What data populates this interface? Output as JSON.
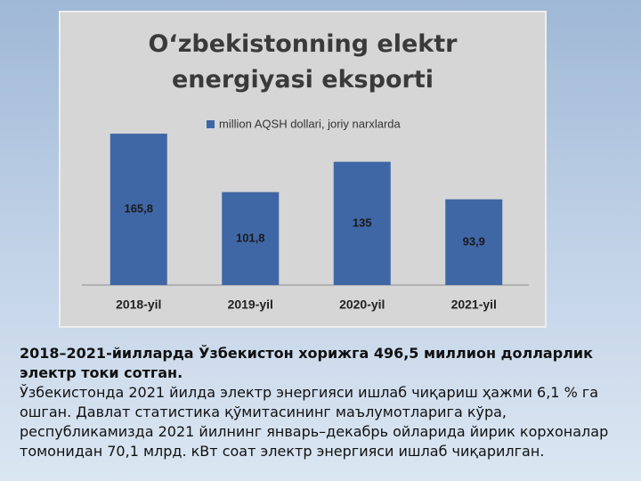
{
  "chart_data": {
    "type": "bar",
    "title": "O‘zbekistonning elektr energiyasi eksporti",
    "legend": "million AQSH dollari, joriy narxlarda",
    "categories": [
      "2018-yil",
      "2019-yil",
      "2020-yil",
      "2021-yil"
    ],
    "values": [
      165.8,
      101.8,
      135,
      93.9
    ],
    "value_labels": [
      "165,8",
      "101,8",
      "135",
      "93,9"
    ],
    "color": "#3f67a6",
    "ylim": [
      0,
      200
    ]
  },
  "caption": {
    "headline": "2018–2021-йилларда Ўзбекистон хорижга 496,5 миллион долларлик электр токи сотган.",
    "body": "Ўзбекистонда 2021 йилда электр энергияси ишлаб чиқариш ҳажми 6,1 % га ошган. Давлат статистика қўмитасининг маълумотларига кўра, республикамизда 2021 йилнинг январь–декабрь ойларида йирик корхоналар томонидан 70,1 млрд. кВт соат электр энергияси ишлаб чиқарилган."
  }
}
